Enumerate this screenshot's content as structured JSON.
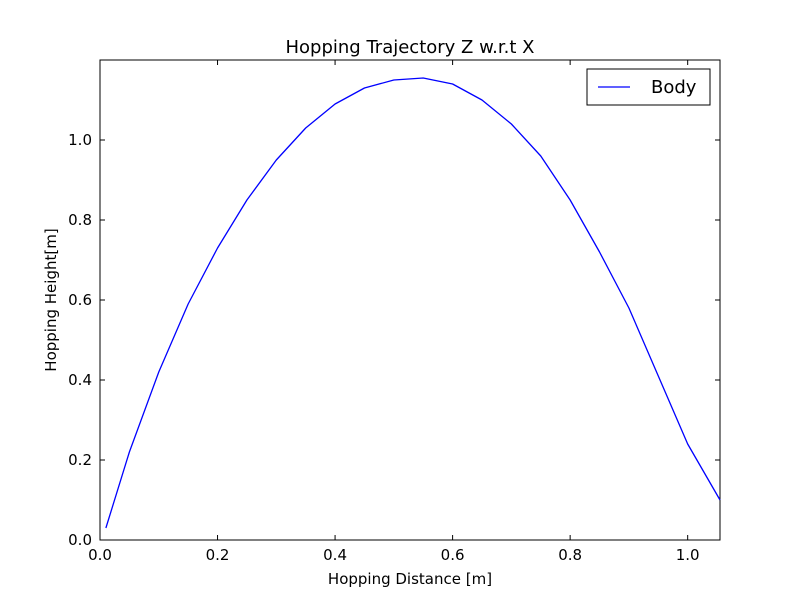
{
  "chart_data": {
    "type": "line",
    "title": "Hopping Trajectory Z w.r.t X",
    "xlabel": "Hopping Distance [m]",
    "ylabel": "Hopping Height[m]",
    "xlim": [
      0.0,
      1.055
    ],
    "ylim": [
      0.0,
      1.2
    ],
    "xticks": [
      0.0,
      0.2,
      0.4,
      0.6,
      0.8,
      1.0
    ],
    "xtick_labels": [
      "0.0",
      "0.2",
      "0.4",
      "0.6",
      "0.8",
      "1.0"
    ],
    "yticks": [
      0.0,
      0.2,
      0.4,
      0.6,
      0.8,
      1.0
    ],
    "ytick_labels": [
      "0.0",
      "0.2",
      "0.4",
      "0.6",
      "0.8",
      "1.0"
    ],
    "grid": false,
    "legend_position": "top-right",
    "series": [
      {
        "name": "Body",
        "color": "#0000ff",
        "x": [
          0.01,
          0.05,
          0.1,
          0.15,
          0.2,
          0.25,
          0.3,
          0.35,
          0.4,
          0.45,
          0.5,
          0.55,
          0.6,
          0.65,
          0.7,
          0.75,
          0.8,
          0.85,
          0.9,
          0.95,
          1.0,
          1.055
        ],
        "y": [
          0.03,
          0.22,
          0.42,
          0.59,
          0.73,
          0.85,
          0.95,
          1.03,
          1.09,
          1.13,
          1.15,
          1.155,
          1.14,
          1.1,
          1.04,
          0.96,
          0.85,
          0.72,
          0.58,
          0.41,
          0.24,
          0.1
        ]
      }
    ]
  }
}
